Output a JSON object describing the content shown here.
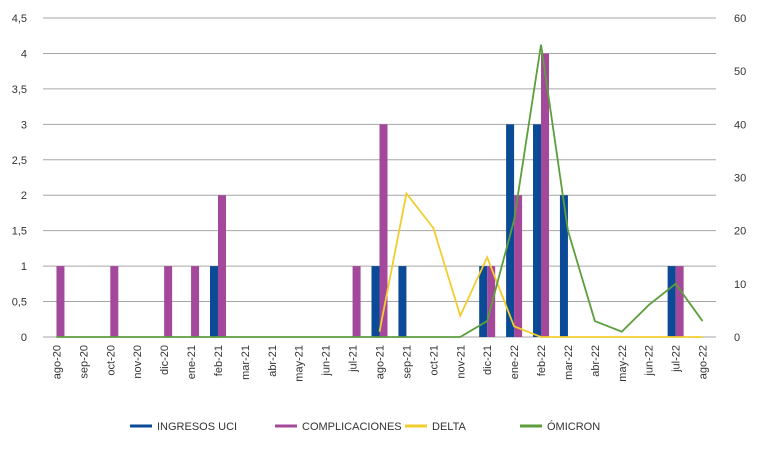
{
  "chart_data": {
    "type": "bar",
    "title": "",
    "categories": [
      "ago-20",
      "sep-20",
      "oct-20",
      "nov-20",
      "dic-20",
      "ene-21",
      "feb-21",
      "mar-21",
      "abr-21",
      "may-21",
      "jun-21",
      "jul-21",
      "ago-21",
      "sep-21",
      "oct-21",
      "nov-21",
      "dic-21",
      "ene-22",
      "feb-22",
      "mar-22",
      "abr-22",
      "may-22",
      "jun-22",
      "jul-22",
      "ago-22"
    ],
    "y_left": {
      "range": [
        0,
        4.5
      ],
      "ticks": [
        "0",
        "0,5",
        "1",
        "1,5",
        "2",
        "2,5",
        "3",
        "3,5",
        "4",
        "4,5"
      ]
    },
    "y_right": {
      "range": [
        0,
        60
      ],
      "ticks": [
        "0",
        "10",
        "20",
        "30",
        "40",
        "50",
        "60"
      ]
    },
    "grid": true,
    "legend_placement": "bottom",
    "series": [
      {
        "name": "INGRESOS UCI",
        "kind": "bar",
        "axis": "left",
        "color": "#0b4a96",
        "values": [
          0,
          0,
          0,
          0,
          0,
          0,
          1,
          0,
          0,
          0,
          0,
          0,
          1,
          1,
          0,
          0,
          1,
          3,
          3,
          2,
          0,
          0,
          0,
          1,
          0
        ]
      },
      {
        "name": "COMPLICACIONES",
        "kind": "bar",
        "axis": "left",
        "color": "#a3489a",
        "values": [
          1,
          0,
          1,
          0,
          1,
          1,
          2,
          0,
          0,
          0,
          0,
          1,
          3,
          0,
          0,
          0,
          1,
          2,
          4,
          0,
          0,
          0,
          0,
          1,
          0
        ]
      },
      {
        "name": "DELTA",
        "kind": "line",
        "axis": "right",
        "color": "#f2cd2c",
        "values": [
          null,
          null,
          null,
          null,
          null,
          null,
          null,
          null,
          null,
          null,
          null,
          null,
          1,
          27,
          20.5,
          4,
          15,
          2,
          0,
          0,
          0,
          0,
          0,
          0,
          0
        ]
      },
      {
        "name": "ÓMICRON",
        "kind": "line",
        "axis": "right",
        "color": "#5c9e3c",
        "values": [
          0,
          0,
          0,
          0,
          0,
          0,
          0,
          0,
          0,
          0,
          0,
          0,
          0,
          0,
          0,
          0,
          3,
          22,
          55,
          20,
          3,
          1,
          6,
          10,
          3
        ]
      }
    ]
  }
}
